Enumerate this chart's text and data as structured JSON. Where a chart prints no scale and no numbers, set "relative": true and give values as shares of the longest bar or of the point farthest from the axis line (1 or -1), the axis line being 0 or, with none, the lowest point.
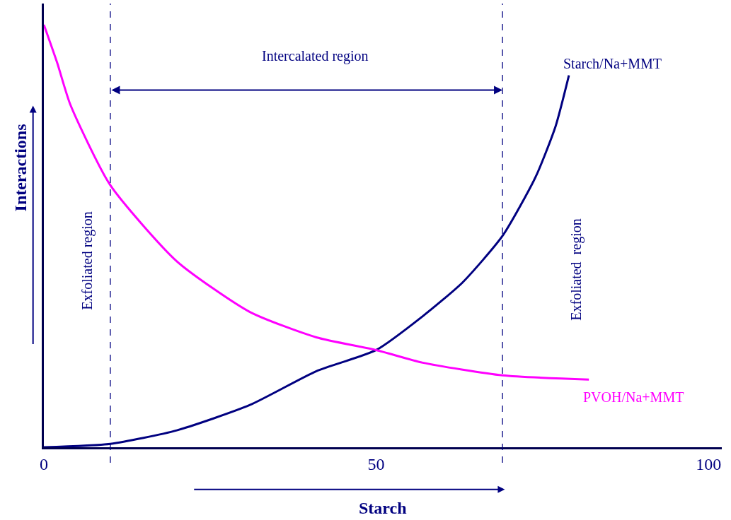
{
  "chart_data": {
    "type": "line",
    "relative": true,
    "xlabel": "Starch",
    "ylabel": "Interactions",
    "xlim": [
      0,
      102
    ],
    "xticks": [
      0,
      50,
      100
    ],
    "legend": false,
    "marker": "none",
    "line_style": "solid",
    "series": [
      {
        "name": "Starch/Na+MMT",
        "color": "#000080",
        "x": [
          0,
          10,
          20,
          31,
          41,
          50,
          57,
          63,
          69,
          74,
          77,
          79
        ],
        "values": [
          0,
          0.008,
          0.04,
          0.1,
          0.18,
          0.23,
          0.31,
          0.39,
          0.5,
          0.64,
          0.76,
          0.88
        ]
      },
      {
        "name": "PVOH/Na+MMT",
        "color": "#ff00ff",
        "x": [
          0,
          2,
          4,
          10,
          20,
          31,
          41,
          50,
          57,
          69,
          82
        ],
        "values": [
          1,
          0.91,
          0.81,
          0.62,
          0.44,
          0.32,
          0.26,
          0.23,
          0.2,
          0.17,
          0.16
        ]
      }
    ],
    "ref_lines": [
      {
        "axis": "x",
        "value": 10,
        "color": "#000080",
        "line_style": "dashed"
      },
      {
        "axis": "x",
        "value": 69,
        "color": "#000080",
        "line_style": "dashed"
      }
    ],
    "annotations": [
      "Intercalated region",
      "Exfoliated region",
      "Exfoliated  region"
    ]
  }
}
